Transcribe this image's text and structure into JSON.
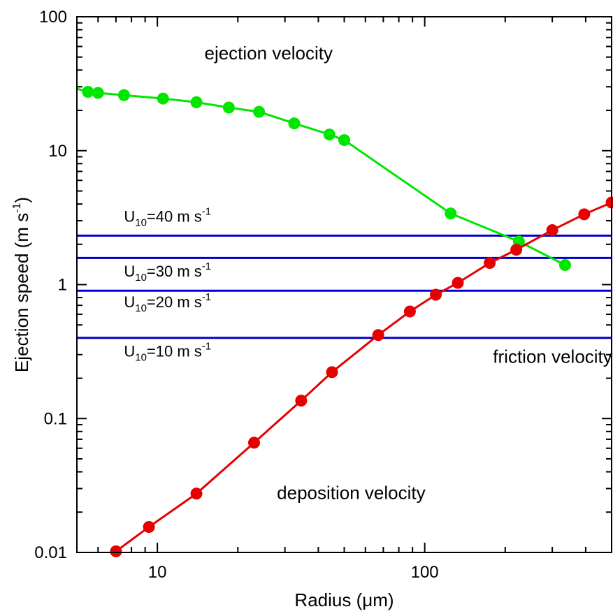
{
  "chart_data": {
    "type": "line",
    "xscale": "log",
    "yscale": "log",
    "xlim": [
      5.0,
      500.0
    ],
    "ylim": [
      0.01,
      100
    ],
    "xlabel": "Radius (μm)",
    "ylabel": "Ejection speed (m s-1)",
    "xlabel_parts": {
      "main": "Radius (",
      "mu": "μ",
      "rest": "m)"
    },
    "ylabel_parts": {
      "main": "Ejection speed (m s",
      "sup": "-1",
      "end": ")"
    },
    "x_ticks": [
      {
        "value": 10,
        "label": "10"
      },
      {
        "value": 100,
        "label": "100"
      }
    ],
    "y_ticks": [
      {
        "value": 0.01,
        "label": "0.01"
      },
      {
        "value": 0.1,
        "label": "0.1"
      },
      {
        "value": 1,
        "label": "1"
      },
      {
        "value": 10,
        "label": "10"
      },
      {
        "value": 100,
        "label": "100"
      }
    ],
    "series": [
      {
        "label": "ejection velocity",
        "color": "#00e600",
        "line_start": [
          5.0,
          29.0
        ],
        "points": [
          [
            5.5,
            27.5
          ],
          [
            6.0,
            27.0
          ],
          [
            7.5,
            26.0
          ],
          [
            10.5,
            24.5
          ],
          [
            14.0,
            23.0
          ],
          [
            18.5,
            21.0
          ],
          [
            24.0,
            19.5
          ],
          [
            32.5,
            16.0
          ],
          [
            44.0,
            13.2
          ],
          [
            50.0,
            12.0
          ],
          [
            125.0,
            3.4
          ],
          [
            225.0,
            2.1
          ],
          [
            335.0,
            1.4
          ]
        ],
        "label_pos": [
          15.0,
          48.0
        ]
      },
      {
        "label": "deposition velocity",
        "color": "#e60000",
        "line_end": [
          500.0,
          4.1
        ],
        "points": [
          [
            7.0,
            0.0102
          ],
          [
            9.3,
            0.0155
          ],
          [
            14.0,
            0.0275
          ],
          [
            23.0,
            0.066
          ],
          [
            34.5,
            0.136
          ],
          [
            45.0,
            0.222
          ],
          [
            67.0,
            0.42
          ],
          [
            88.0,
            0.63
          ],
          [
            110.0,
            0.84
          ],
          [
            133.0,
            1.03
          ],
          [
            175.0,
            1.45
          ],
          [
            220.0,
            1.82
          ],
          [
            300.0,
            2.55
          ],
          [
            395.0,
            3.35
          ],
          [
            500.0,
            4.1
          ]
        ],
        "label_pos": [
          28.0,
          0.025
        ]
      }
    ],
    "friction_velocity": {
      "label": "friction velocity",
      "color": "#0000cc",
      "label_pos": [
        180.0,
        0.26
      ],
      "lines": [
        {
          "value": 2.32,
          "prefix": "U",
          "sub": "10",
          "text": "=40 m s",
          "sup": "-1",
          "label_y": 2.95
        },
        {
          "value": 1.58,
          "prefix": "U",
          "sub": "10",
          "text": "=30 m s",
          "sup": "-1",
          "label_y": 1.15
        },
        {
          "value": 0.9,
          "prefix": "U",
          "sub": "10",
          "text": "=20 m s",
          "sup": "-1",
          "label_y": 0.675
        },
        {
          "value": 0.4,
          "prefix": "U",
          "sub": "10",
          "text": "=10 m s",
          "sup": "-1",
          "label_y": 0.29
        }
      ],
      "label_x": 7.5
    }
  }
}
